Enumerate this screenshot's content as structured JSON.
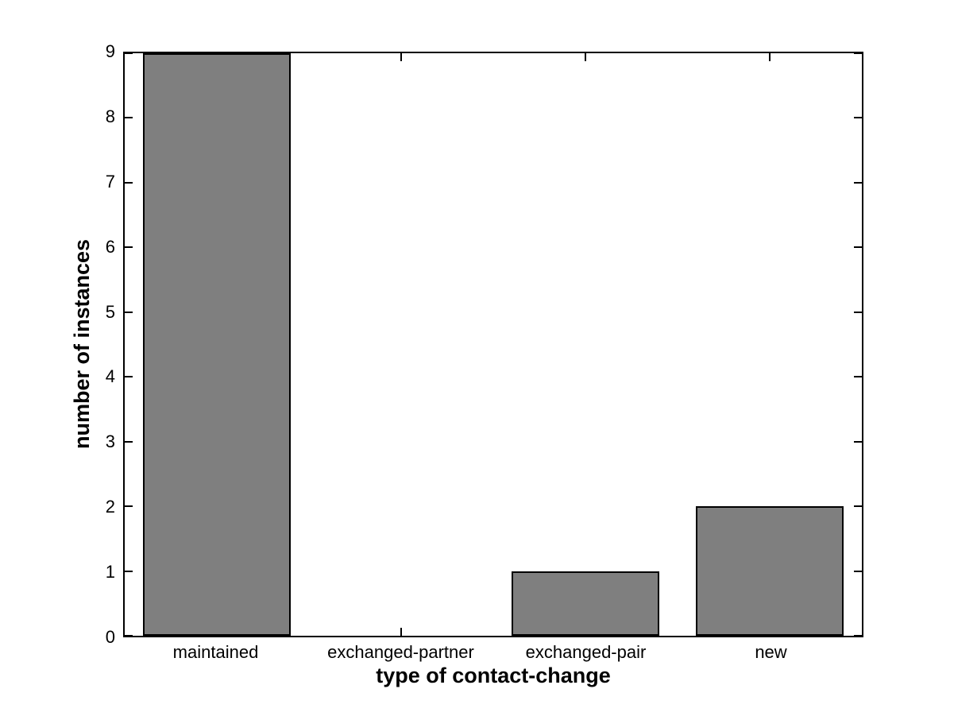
{
  "chart_data": {
    "type": "bar",
    "categories": [
      "maintained",
      "exchanged-partner",
      "exchanged-pair",
      "new"
    ],
    "values": [
      9,
      0,
      1,
      2
    ],
    "title": "",
    "xlabel": "type of contact-change",
    "ylabel": "number of instances",
    "ylim": [
      0,
      9
    ],
    "yticks": [
      0,
      1,
      2,
      3,
      4,
      5,
      6,
      7,
      8,
      9
    ],
    "bar_width_fraction": 0.8,
    "bar_color": "#7f7f7f",
    "bar_edge_color": "#000000",
    "axis_color": "#000000",
    "background_color": "#ffffff",
    "grid": false,
    "box": true,
    "tick_direction": "in",
    "legend": null
  }
}
